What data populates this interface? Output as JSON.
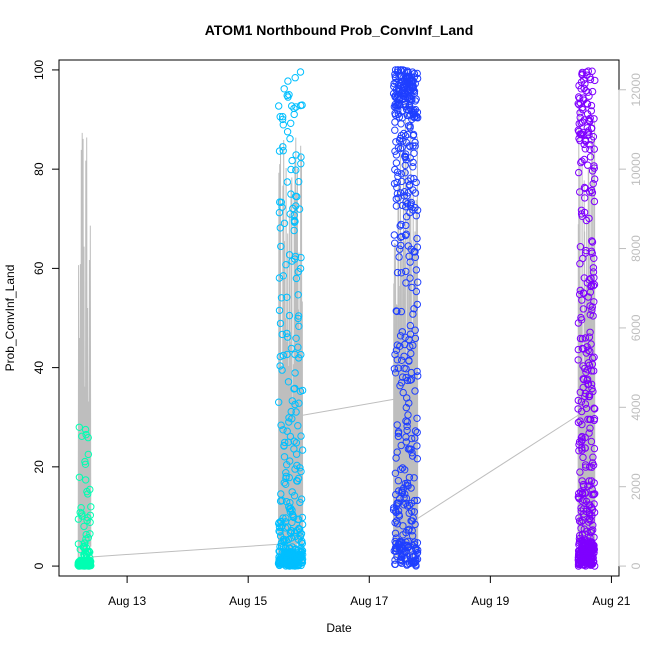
{
  "chart_data": {
    "type": "scatter",
    "title": "ATOM1 Northbound Prob_ConvInf_Land",
    "xlabel": "Date",
    "ylabel": "Prob_ConvInf_Land",
    "xlim": [
      "2012-08-11T21:00",
      "2012-08-21T03:00"
    ],
    "ylim": [
      -2,
      102
    ],
    "x_ticks": [
      {
        "value": "2012-08-13",
        "label": "Aug 13"
      },
      {
        "value": "2012-08-15",
        "label": "Aug 15"
      },
      {
        "value": "2012-08-17",
        "label": "Aug 17"
      },
      {
        "value": "2012-08-19",
        "label": "Aug 19"
      },
      {
        "value": "2012-08-21",
        "label": "Aug 21"
      }
    ],
    "y_ticks": [
      0,
      20,
      40,
      60,
      80,
      100
    ],
    "secondary_axis": {
      "color": "#bebebe",
      "ylim": [
        -250,
        12750
      ],
      "ticks": [
        0,
        2000,
        4000,
        6000,
        8000,
        10000,
        12000
      ]
    },
    "grid": false,
    "series": [
      {
        "start": "2012-08-12T04:36",
        "end": "2012-08-12T09:36",
        "color": "#00ffb2",
        "profile": [
          [
            0,
            0.7
          ],
          [
            1,
            0.16
          ],
          [
            6,
            0.08
          ],
          [
            12,
            0.03
          ],
          [
            29,
            0.03
          ]
        ],
        "scatter_count": 180
      },
      {
        "start": "2012-08-15T12:00",
        "end": "2012-08-15T21:36",
        "color": "#00bfff",
        "profile": [
          [
            0,
            0.45
          ],
          [
            3,
            0.15
          ],
          [
            10,
            0.12
          ],
          [
            30,
            0.12
          ],
          [
            60,
            0.08
          ],
          [
            101,
            0.08
          ]
        ],
        "scatter_count": 360
      },
      {
        "start": "2012-08-17T09:36",
        "end": "2012-08-17T19:12",
        "color": "#1f3fff",
        "profile": [
          [
            0,
            0.18
          ],
          [
            5,
            0.12
          ],
          [
            15,
            0.1
          ],
          [
            40,
            0.15
          ],
          [
            70,
            0.15
          ],
          [
            90,
            0.12
          ],
          [
            101,
            0.18
          ]
        ],
        "scatter_count": 460
      },
      {
        "start": "2012-08-20T10:48",
        "end": "2012-08-20T17:24",
        "color": "#7f00ff",
        "profile": [
          [
            0,
            0.32
          ],
          [
            5,
            0.14
          ],
          [
            15,
            0.12
          ],
          [
            35,
            0.14
          ],
          [
            60,
            0.12
          ],
          [
            85,
            0.08
          ],
          [
            101,
            0.08
          ]
        ],
        "scatter_count": 440
      }
    ],
    "line_series": {
      "color": "#bebebe",
      "axis": "secondary",
      "segments": [
        {
          "start": "2012-08-12T04:36",
          "end": "2012-08-12T09:36",
          "value_range": [
            0,
            11500
          ],
          "spikes": 14
        },
        {
          "start": "2012-08-15T12:00",
          "end": "2012-08-15T21:36",
          "value_range": [
            0,
            10800
          ],
          "spikes": 30
        },
        {
          "start": "2012-08-17T09:36",
          "end": "2012-08-17T19:12",
          "value_range": [
            0,
            11800
          ],
          "spikes": 40
        },
        {
          "start": "2012-08-20T10:48",
          "end": "2012-08-20T17:24",
          "value_range": [
            0,
            12000
          ],
          "spikes": 40
        }
      ],
      "connectors": [
        {
          "from": [
            "2012-08-12T09:36",
            230
          ],
          "to": [
            "2012-08-15T12:00",
            550
          ]
        },
        {
          "from": [
            "2012-08-15T21:36",
            3800
          ],
          "to": [
            "2012-08-17T09:36",
            4200
          ]
        },
        {
          "from": [
            "2012-08-17T19:12",
            1200
          ],
          "to": [
            "2012-08-20T10:48",
            3800
          ]
        }
      ]
    }
  }
}
